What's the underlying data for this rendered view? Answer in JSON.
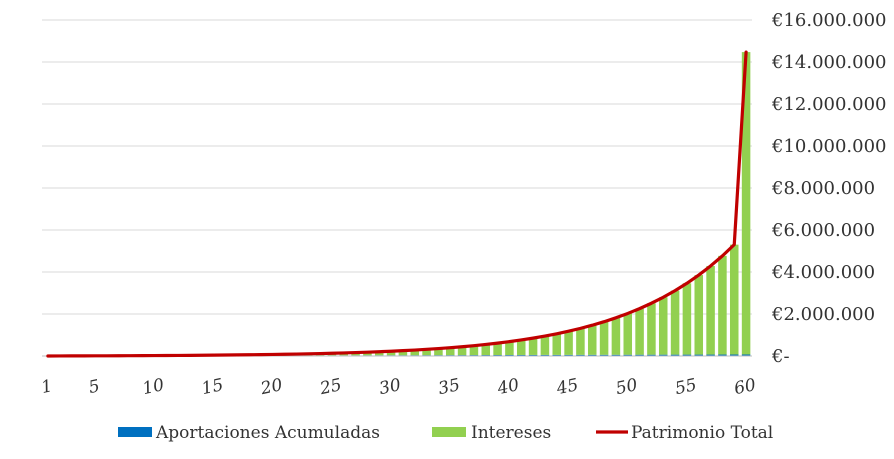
{
  "chart_data": {
    "type": "bar",
    "x": [
      1,
      2,
      3,
      4,
      5,
      6,
      7,
      8,
      9,
      10,
      11,
      12,
      13,
      14,
      15,
      16,
      17,
      18,
      19,
      20,
      21,
      22,
      23,
      24,
      25,
      26,
      27,
      28,
      29,
      30,
      31,
      32,
      33,
      34,
      35,
      36,
      37,
      38,
      39,
      40,
      41,
      42,
      43,
      44,
      45,
      46,
      47,
      48,
      49,
      50,
      51,
      52,
      53,
      54,
      55,
      56,
      57,
      58,
      59,
      60
    ],
    "x_tick_labels": [
      "1",
      "5",
      "10",
      "15",
      "20",
      "25",
      "30",
      "35",
      "40",
      "45",
      "50",
      "55",
      "60"
    ],
    "x_tick_values": [
      1,
      5,
      10,
      15,
      20,
      25,
      30,
      35,
      40,
      45,
      50,
      55,
      60
    ],
    "y_tick_labels": [
      "€-",
      "€2.000.000",
      "€4.000.000",
      "€6.000.000",
      "€8.000.000",
      "€10.000.000",
      "€12.000.000",
      "€14.000.000",
      "€16.000.000"
    ],
    "y_tick_values": [
      0,
      2000000,
      4000000,
      6000000,
      8000000,
      10000000,
      12000000,
      14000000,
      16000000
    ],
    "ylim": [
      0,
      16000000
    ],
    "grid": true,
    "legend_position": "bottom",
    "series": [
      {
        "name": "Aportaciones Acumuladas",
        "type": "bar",
        "color": "#0070C0",
        "values": [
          1200,
          2400,
          3600,
          4800,
          6000,
          7200,
          8400,
          9600,
          10800,
          12000,
          13200,
          14400,
          15600,
          16800,
          18000,
          19200,
          20400,
          21600,
          22800,
          24000,
          25200,
          26400,
          27600,
          28800,
          30000,
          31200,
          32400,
          33600,
          34800,
          36000,
          37200,
          38400,
          39600,
          40800,
          42000,
          43200,
          44400,
          45600,
          46800,
          48000,
          49200,
          50400,
          51600,
          52800,
          54000,
          55200,
          56400,
          57600,
          58800,
          60000,
          61200,
          62400,
          63600,
          64800,
          66000,
          67200,
          68400,
          69600,
          70800,
          72000
        ]
      },
      {
        "name": "Intereses",
        "type": "bar",
        "color": "#92D050",
        "values": [
          120,
          372,
          780,
          1356,
          2120,
          3000,
          4100,
          5400,
          6900,
          8700,
          10800,
          13200,
          16000,
          19200,
          22800,
          27000,
          31800,
          37200,
          43300,
          50200,
          58000,
          66800,
          76800,
          88000,
          100600,
          114800,
          130800,
          148800,
          169000,
          191700,
          217100,
          245600,
          277500,
          313200,
          353200,
          397900,
          447900,
          503800,
          566300,
          636100,
          714000,
          801000,
          898000,
          1006000,
          1126000,
          1260000,
          1409000,
          1575000,
          1760000,
          1966000,
          2195000,
          2450000,
          2733000,
          3048000,
          3398000,
          3787000,
          4219000,
          4699000,
          5232000,
          14400000
        ]
      },
      {
        "name": "Patrimonio Total",
        "type": "line",
        "color": "#C00000",
        "values": [
          1320,
          2772,
          4380,
          6156,
          8120,
          10200,
          12500,
          15000,
          17700,
          20700,
          24000,
          27600,
          31600,
          36000,
          40800,
          46200,
          52200,
          58800,
          66100,
          74200,
          83200,
          93200,
          104400,
          116800,
          130600,
          146000,
          163200,
          182400,
          203800,
          227700,
          254300,
          284000,
          317100,
          354000,
          395200,
          441100,
          492300,
          549400,
          613100,
          684100,
          763200,
          851400,
          949600,
          1058800,
          1180000,
          1315200,
          1465400,
          1632600,
          1818800,
          2026000,
          2256200,
          2512400,
          2796600,
          3112800,
          3464000,
          3854200,
          4287400,
          4768600,
          5302800,
          14472000
        ]
      }
    ]
  }
}
